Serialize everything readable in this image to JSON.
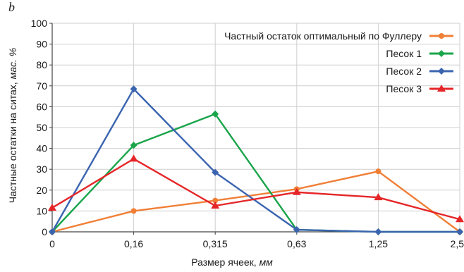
{
  "panel_letter": "b",
  "chart_data": {
    "type": "line",
    "categories": [
      "0",
      "0,16",
      "0,315",
      "0,63",
      "1,25",
      "2,5"
    ],
    "xlabel": "Размер ячеек,",
    "xlabel_unit": "мм",
    "ylabel": "Частные остатки на ситах,",
    "ylabel_unit": "мас. %",
    "ylim": [
      0,
      100
    ],
    "yticks": [
      0,
      10,
      20,
      30,
      40,
      50,
      60,
      70,
      80,
      90,
      100
    ],
    "grid": true,
    "legend_position": "top-right",
    "series": [
      {
        "name": "Частный остаток оптимальный по Фуллеру",
        "color": "#f07f36",
        "marker": "circle",
        "values": [
          0,
          10,
          15,
          20.5,
          29,
          0
        ]
      },
      {
        "name": "Песок 1",
        "color": "#1aa54b",
        "marker": "diamond",
        "values": [
          0,
          41.5,
          56.5,
          1,
          0,
          0
        ]
      },
      {
        "name": "Песок 2",
        "color": "#3b64b0",
        "marker": "diamond",
        "values": [
          0,
          68.5,
          28.5,
          1,
          0,
          0
        ]
      },
      {
        "name": "Песок 3",
        "color": "#e52629",
        "marker": "triangle",
        "values": [
          11.5,
          35,
          12.5,
          19,
          16.5,
          6
        ]
      }
    ]
  }
}
